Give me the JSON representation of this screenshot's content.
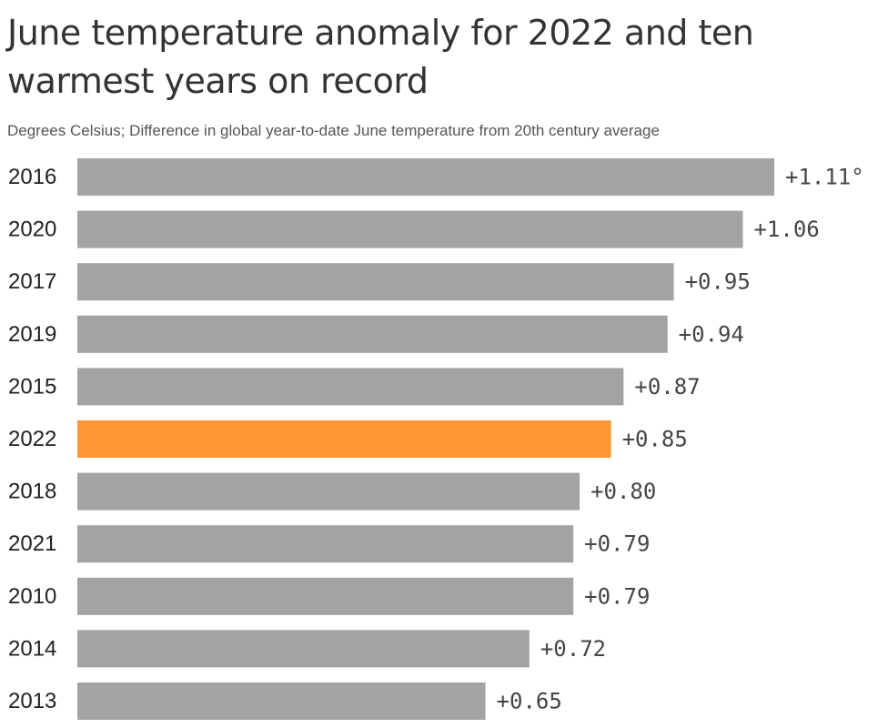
{
  "chart_data": {
    "type": "bar",
    "orientation": "horizontal",
    "title": "June temperature anomaly for 2022 and ten warmest years on record",
    "subtitle": "Degrees Celsius; Difference in global year-to-date June temperature from 20th century average",
    "categories": [
      "2016",
      "2020",
      "2017",
      "2019",
      "2015",
      "2022",
      "2018",
      "2021",
      "2010",
      "2014",
      "2013"
    ],
    "values": [
      1.11,
      1.06,
      0.95,
      0.94,
      0.87,
      0.85,
      0.8,
      0.79,
      0.79,
      0.72,
      0.65
    ],
    "value_labels": [
      "+1.11°",
      "+1.06",
      "+0.95",
      "+0.94",
      "+0.87",
      "+0.85",
      "+0.80",
      "+0.79",
      "+0.79",
      "+0.72",
      "+0.65"
    ],
    "highlight_category": "2022",
    "colors": {
      "default": "#a2a3a2",
      "highlight": "#ff9632"
    },
    "xlim": [
      0,
      1.11
    ],
    "grid": false,
    "legend": "none"
  }
}
